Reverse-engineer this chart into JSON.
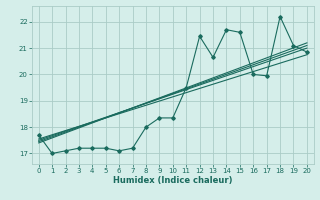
{
  "xlabel": "Humidex (Indice chaleur)",
  "bg_color": "#d5eeea",
  "grid_color": "#aaccc7",
  "line_color": "#1a6b5e",
  "xlim": [
    -0.5,
    20.5
  ],
  "ylim": [
    16.6,
    22.6
  ],
  "xticks": [
    0,
    1,
    2,
    3,
    4,
    5,
    6,
    7,
    8,
    9,
    10,
    11,
    12,
    13,
    14,
    15,
    16,
    17,
    18,
    19,
    20
  ],
  "yticks": [
    17,
    18,
    19,
    20,
    21,
    22
  ],
  "straight_lines": [
    {
      "x0": 0,
      "y0": 17.55,
      "x1": 20,
      "y1": 20.75
    },
    {
      "x0": 0,
      "y0": 17.5,
      "x1": 20,
      "y1": 21.0
    },
    {
      "x0": 0,
      "y0": 17.45,
      "x1": 20,
      "y1": 21.1
    },
    {
      "x0": 0,
      "y0": 17.4,
      "x1": 20,
      "y1": 21.2
    }
  ],
  "main_series_x": [
    0,
    1,
    2,
    3,
    4,
    5,
    6,
    7,
    8,
    9,
    10,
    11,
    12,
    13,
    14,
    15,
    16,
    17,
    18,
    19,
    20
  ],
  "main_series_y": [
    17.7,
    17.0,
    17.1,
    17.2,
    17.2,
    17.2,
    17.1,
    17.2,
    18.0,
    18.35,
    18.35,
    19.5,
    21.45,
    20.65,
    21.7,
    21.6,
    20.0,
    19.95,
    22.2,
    21.1,
    20.85
  ]
}
